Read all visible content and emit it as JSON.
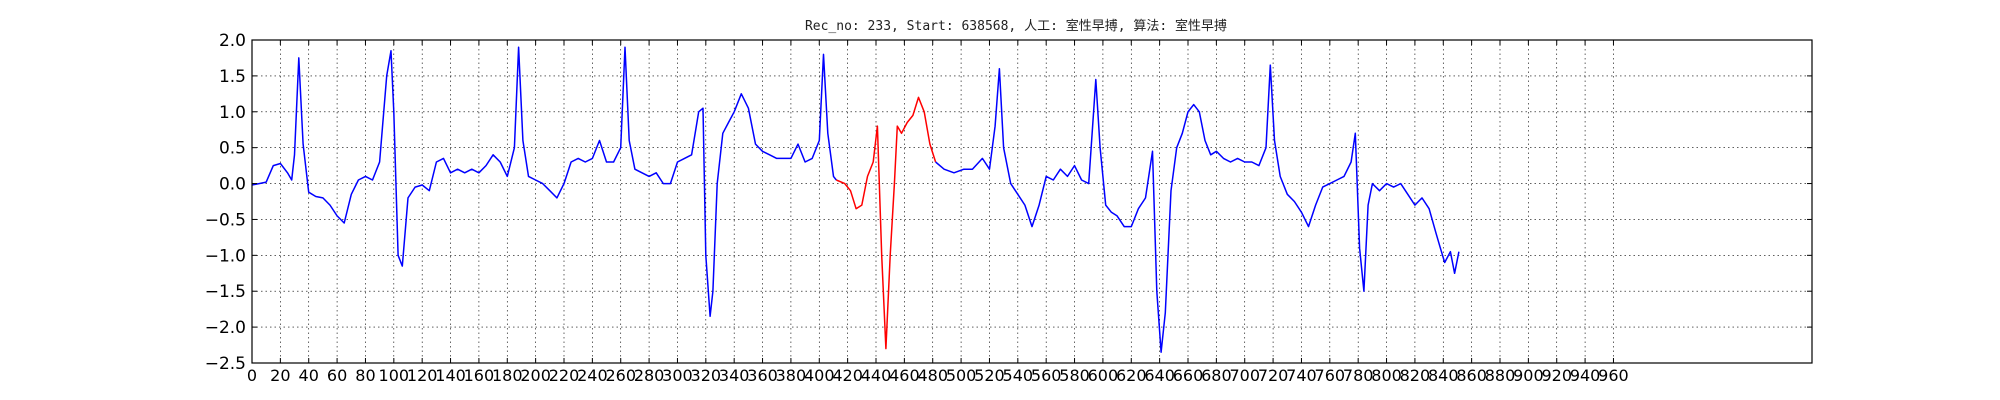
{
  "chart_data": {
    "type": "line",
    "title": "Rec_no: 233, Start: 638568, 人工: 室性早搏, 算法: 室性早搏",
    "xlabel": "",
    "ylabel": "",
    "xlim": [
      0,
      1100
    ],
    "ylim": [
      -2.5,
      2.0
    ],
    "grid": true,
    "yticks": [
      2.0,
      1.5,
      1.0,
      0.5,
      0.0,
      -0.5,
      -1.0,
      -1.5,
      -2.0,
      -2.5
    ],
    "ytick_labels": [
      "2.0",
      "1.5",
      "1.0",
      "0.5",
      "0.0",
      "−0.5",
      "−1.0",
      "−1.5",
      "−2.0",
      "−2.5"
    ],
    "xticks": [
      0,
      20,
      40,
      60,
      80,
      100,
      120,
      140,
      160,
      180,
      200,
      220,
      240,
      260,
      280,
      300,
      320,
      340,
      360,
      380,
      400,
      420,
      440,
      460,
      480,
      500,
      520,
      540,
      560,
      580,
      600,
      620,
      640,
      660,
      680,
      700,
      720,
      740,
      760,
      780,
      800,
      820,
      840,
      860,
      880,
      900,
      920,
      940,
      960
    ],
    "xtick_labels": [
      "0",
      "20",
      "40",
      "60",
      "80",
      "100",
      "120",
      "140",
      "160",
      "180",
      "200",
      "220",
      "240",
      "260",
      "280",
      "300",
      "320",
      "340",
      "360",
      "380",
      "400",
      "420",
      "440",
      "460",
      "480",
      "500",
      "520",
      "540",
      "560",
      "580",
      "600",
      "620",
      "640",
      "660",
      "680",
      "700",
      "720",
      "740",
      "760",
      "780",
      "800",
      "820",
      "840",
      "860",
      "880",
      "900",
      "920",
      "940",
      "960"
    ],
    "series": [
      {
        "color": "#0000ff",
        "points": [
          [
            0,
            -0.02
          ],
          [
            5,
            0.0
          ],
          [
            10,
            0.02
          ],
          [
            15,
            0.25
          ],
          [
            20,
            0.28
          ],
          [
            25,
            0.15
          ],
          [
            28,
            0.05
          ],
          [
            30,
            0.4
          ],
          [
            33,
            1.75
          ],
          [
            36,
            0.55
          ],
          [
            40,
            -0.12
          ],
          [
            45,
            -0.18
          ],
          [
            50,
            -0.2
          ],
          [
            55,
            -0.3
          ],
          [
            60,
            -0.45
          ],
          [
            65,
            -0.55
          ],
          [
            70,
            -0.15
          ],
          [
            75,
            0.05
          ],
          [
            80,
            0.1
          ],
          [
            85,
            0.05
          ],
          [
            90,
            0.3
          ],
          [
            95,
            1.5
          ],
          [
            98,
            1.85
          ],
          [
            100,
            1.0
          ],
          [
            103,
            -1.0
          ],
          [
            106,
            -1.15
          ],
          [
            110,
            -0.2
          ],
          [
            115,
            -0.05
          ],
          [
            120,
            -0.02
          ],
          [
            125,
            -0.1
          ],
          [
            130,
            0.3
          ],
          [
            135,
            0.35
          ],
          [
            140,
            0.15
          ],
          [
            145,
            0.2
          ],
          [
            150,
            0.15
          ],
          [
            155,
            0.2
          ],
          [
            160,
            0.15
          ],
          [
            165,
            0.25
          ],
          [
            170,
            0.4
          ],
          [
            175,
            0.3
          ],
          [
            180,
            0.1
          ],
          [
            185,
            0.5
          ],
          [
            188,
            1.9
          ],
          [
            191,
            0.6
          ],
          [
            195,
            0.1
          ],
          [
            200,
            0.05
          ],
          [
            205,
            0.0
          ],
          [
            210,
            -0.1
          ],
          [
            215,
            -0.2
          ],
          [
            220,
            0.0
          ],
          [
            225,
            0.3
          ],
          [
            230,
            0.35
          ],
          [
            235,
            0.3
          ],
          [
            240,
            0.35
          ],
          [
            245,
            0.6
          ],
          [
            250,
            0.3
          ],
          [
            255,
            0.3
          ],
          [
            260,
            0.5
          ],
          [
            263,
            1.9
          ],
          [
            266,
            0.6
          ],
          [
            270,
            0.2
          ],
          [
            275,
            0.15
          ],
          [
            280,
            0.1
          ],
          [
            285,
            0.15
          ],
          [
            290,
            0.0
          ],
          [
            295,
            0.0
          ],
          [
            300,
            0.3
          ],
          [
            305,
            0.35
          ],
          [
            310,
            0.4
          ],
          [
            315,
            1.0
          ],
          [
            318,
            1.05
          ],
          [
            320,
            -1.0
          ],
          [
            323,
            -1.85
          ],
          [
            325,
            -1.5
          ],
          [
            328,
            0.0
          ],
          [
            332,
            0.7
          ],
          [
            336,
            0.85
          ],
          [
            340,
            1.0
          ],
          [
            345,
            1.25
          ],
          [
            350,
            1.05
          ],
          [
            355,
            0.55
          ],
          [
            360,
            0.45
          ],
          [
            365,
            0.4
          ],
          [
            370,
            0.35
          ],
          [
            375,
            0.35
          ],
          [
            380,
            0.35
          ],
          [
            385,
            0.55
          ],
          [
            390,
            0.3
          ],
          [
            395,
            0.35
          ],
          [
            400,
            0.6
          ],
          [
            403,
            1.8
          ],
          [
            406,
            0.7
          ],
          [
            410,
            0.1
          ],
          [
            412,
            0.05
          ]
        ]
      },
      {
        "color": "#ff0000",
        "points": [
          [
            412,
            0.05
          ],
          [
            418,
            0.0
          ],
          [
            422,
            -0.1
          ],
          [
            426,
            -0.35
          ],
          [
            430,
            -0.3
          ],
          [
            434,
            0.1
          ],
          [
            438,
            0.3
          ],
          [
            441,
            0.8
          ],
          [
            444,
            -1.0
          ],
          [
            447,
            -2.3
          ],
          [
            450,
            -1.0
          ],
          [
            453,
            0.0
          ],
          [
            455,
            0.8
          ],
          [
            458,
            0.7
          ],
          [
            462,
            0.85
          ],
          [
            466,
            0.95
          ],
          [
            470,
            1.2
          ],
          [
            474,
            1.0
          ],
          [
            478,
            0.55
          ],
          [
            482,
            0.3
          ]
        ]
      },
      {
        "color": "#0000ff",
        "points": [
          [
            482,
            0.3
          ],
          [
            488,
            0.2
          ],
          [
            495,
            0.15
          ],
          [
            502,
            0.2
          ],
          [
            508,
            0.2
          ],
          [
            515,
            0.35
          ],
          [
            520,
            0.2
          ],
          [
            524,
            0.8
          ],
          [
            527,
            1.6
          ],
          [
            530,
            0.5
          ],
          [
            535,
            0.0
          ],
          [
            540,
            -0.15
          ],
          [
            545,
            -0.3
          ],
          [
            550,
            -0.6
          ],
          [
            555,
            -0.3
          ],
          [
            560,
            0.1
          ],
          [
            565,
            0.05
          ],
          [
            570,
            0.2
          ],
          [
            575,
            0.1
          ],
          [
            580,
            0.25
          ],
          [
            585,
            0.05
          ],
          [
            590,
            0.0
          ],
          [
            595,
            1.45
          ],
          [
            598,
            0.5
          ],
          [
            602,
            -0.3
          ],
          [
            606,
            -0.4
          ],
          [
            610,
            -0.45
          ],
          [
            615,
            -0.6
          ],
          [
            620,
            -0.6
          ],
          [
            625,
            -0.35
          ],
          [
            630,
            -0.2
          ],
          [
            635,
            0.45
          ],
          [
            638,
            -1.5
          ],
          [
            641,
            -2.35
          ],
          [
            644,
            -1.8
          ],
          [
            648,
            -0.1
          ],
          [
            652,
            0.5
          ],
          [
            656,
            0.7
          ],
          [
            660,
            1.0
          ],
          [
            664,
            1.1
          ],
          [
            668,
            1.0
          ],
          [
            672,
            0.6
          ],
          [
            676,
            0.4
          ],
          [
            680,
            0.45
          ],
          [
            685,
            0.35
          ],
          [
            690,
            0.3
          ],
          [
            695,
            0.35
          ],
          [
            700,
            0.3
          ],
          [
            705,
            0.3
          ],
          [
            710,
            0.25
          ],
          [
            715,
            0.5
          ],
          [
            718,
            1.65
          ],
          [
            721,
            0.6
          ],
          [
            725,
            0.1
          ],
          [
            730,
            -0.15
          ],
          [
            735,
            -0.25
          ],
          [
            740,
            -0.4
          ],
          [
            745,
            -0.6
          ],
          [
            750,
            -0.3
          ],
          [
            755,
            -0.05
          ],
          [
            760,
            0.0
          ],
          [
            765,
            0.05
          ],
          [
            770,
            0.1
          ],
          [
            775,
            0.3
          ],
          [
            778,
            0.7
          ],
          [
            781,
            -0.9
          ],
          [
            784,
            -1.5
          ],
          [
            787,
            -0.3
          ],
          [
            790,
            0.0
          ],
          [
            795,
            -0.1
          ],
          [
            800,
            0.0
          ],
          [
            805,
            -0.05
          ],
          [
            810,
            0.0
          ],
          [
            815,
            -0.15
          ],
          [
            820,
            -0.3
          ],
          [
            825,
            -0.2
          ],
          [
            830,
            -0.35
          ],
          [
            835,
            -0.7
          ],
          [
            838,
            -0.9
          ],
          [
            841,
            -1.1
          ],
          [
            845,
            -0.95
          ],
          [
            848,
            -1.25
          ],
          [
            851,
            -0.95
          ]
        ]
      }
    ]
  }
}
